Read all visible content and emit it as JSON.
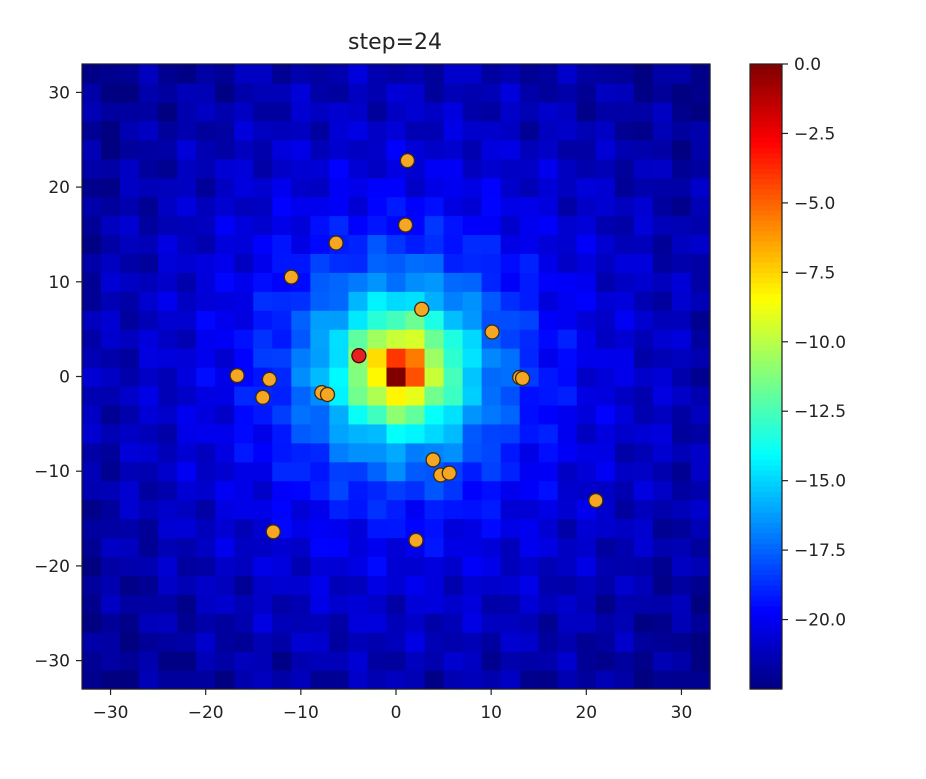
{
  "chart_data": {
    "type": "heatmap",
    "title": "step=24",
    "xlabel": "",
    "ylabel": "",
    "xlim": [
      -33,
      33
    ],
    "ylim": [
      -33,
      33
    ],
    "xticks": [
      -30,
      -20,
      -10,
      0,
      10,
      20,
      30
    ],
    "yticks": [
      -30,
      -20,
      -10,
      0,
      10,
      20,
      30
    ],
    "xtick_labels": [
      "−30",
      "−20",
      "−10",
      "0",
      "10",
      "20",
      "30"
    ],
    "ytick_labels": [
      "−30",
      "−20",
      "−10",
      "0",
      "10",
      "20",
      "30"
    ],
    "colormap": "jet",
    "colorbar": {
      "min": -22.5,
      "max": 0.0,
      "ticks": [
        0.0,
        -2.5,
        -5.0,
        -7.5,
        -10.0,
        -12.5,
        -15.0,
        -17.5,
        -20.0
      ],
      "tick_labels": [
        "0.0",
        "−2.5",
        "−5.0",
        "−7.5",
        "−10.0",
        "−12.5",
        "−15.0",
        "−17.5",
        "−20.0"
      ]
    },
    "heatmap": {
      "grid_min": -33,
      "grid_max": 33,
      "cell_size": 2,
      "peak": [
        0.5,
        0.8
      ],
      "peak_value": 0.0,
      "min_value": -22.5
    },
    "series": [
      {
        "marker_color": "#f5a623",
        "edge_color": "#3a2a10",
        "points": [
          [
            1.2,
            22.8
          ],
          [
            1.0,
            16.0
          ],
          [
            -6.3,
            14.1
          ],
          [
            -11.0,
            10.5
          ],
          [
            2.7,
            7.1
          ],
          [
            10.1,
            4.7
          ],
          [
            -16.7,
            0.1
          ],
          [
            -13.3,
            -0.3
          ],
          [
            13.0,
            -0.1
          ],
          [
            13.3,
            -0.2
          ],
          [
            -14.0,
            -2.2
          ],
          [
            -7.8,
            -1.7
          ],
          [
            -7.2,
            -1.9
          ],
          [
            3.9,
            -8.8
          ],
          [
            4.7,
            -10.4
          ],
          [
            5.6,
            -10.2
          ],
          [
            21.0,
            -13.1
          ],
          [
            -12.9,
            -16.4
          ],
          [
            2.1,
            -17.3
          ]
        ]
      },
      {
        "marker_color": "#e82020",
        "edge_color": "#3a0a0a",
        "points": [
          [
            -3.9,
            2.2
          ]
        ]
      }
    ]
  }
}
